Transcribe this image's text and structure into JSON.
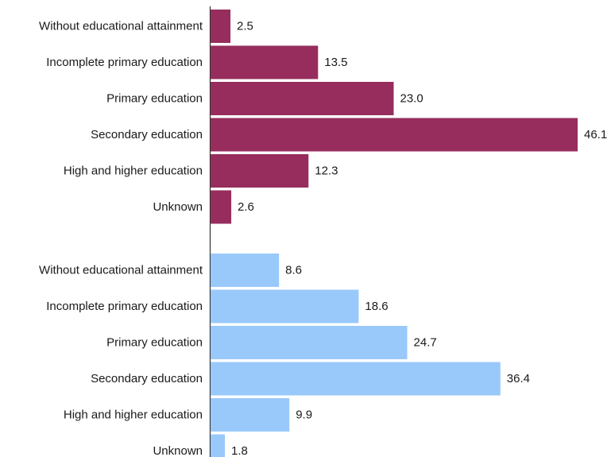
{
  "chart_data": {
    "type": "bar",
    "orientation": "horizontal",
    "xlim": [
      0,
      46.1
    ],
    "grid": false,
    "legend": "none",
    "groups": [
      {
        "color": "#962d5c",
        "categories": [
          "Without educational attainment",
          "Incomplete primary education",
          "Primary education",
          "Secondary education",
          "High and higher education",
          "Unknown"
        ],
        "values": [
          2.5,
          13.5,
          23.0,
          46.1,
          12.3,
          2.6
        ],
        "value_labels": [
          "2.5",
          "13.5",
          "23.0",
          "46.1",
          "12.3",
          "2.6"
        ]
      },
      {
        "color": "#99c9fb",
        "categories": [
          "Without educational attainment",
          "Incomplete primary education",
          "Primary education",
          "Secondary education",
          "High and higher education",
          "Unknown"
        ],
        "values": [
          8.6,
          18.6,
          24.7,
          36.4,
          9.9,
          1.8
        ],
        "value_labels": [
          "8.6",
          "18.6",
          "24.7",
          "36.4",
          "9.9",
          "1.8"
        ]
      }
    ]
  }
}
